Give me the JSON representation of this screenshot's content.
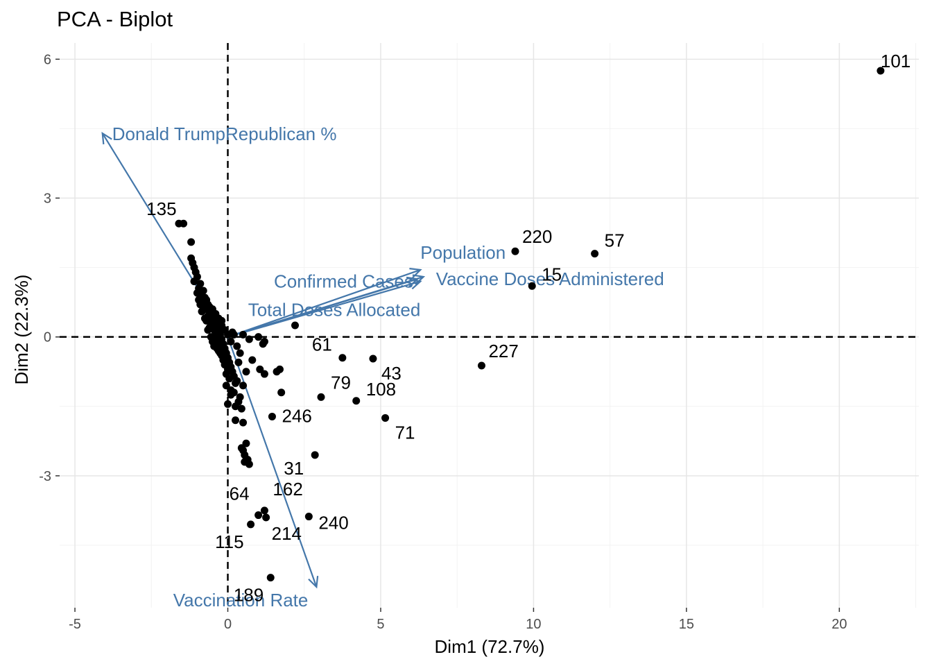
{
  "chart_data": {
    "type": "scatter",
    "title": "PCA - Biplot",
    "xlabel": "Dim1 (72.7%)",
    "ylabel": "Dim2 (22.3%)",
    "xlim": [
      -5.5,
      22.6
    ],
    "ylim": [
      -5.85,
      6.35
    ],
    "x_ticks": [
      -5,
      0,
      5,
      10,
      15,
      20
    ],
    "y_ticks": [
      -3,
      0,
      3,
      6
    ],
    "grid": true,
    "reference_lines": {
      "x": 0,
      "y": 0,
      "style": "dashed"
    },
    "colors": {
      "points": "#000000",
      "arrows": "#4477aa",
      "grid_major": "#e6e6e6",
      "grid_minor": "#f2f2f2",
      "tick_text": "#4d4d4d"
    },
    "variables": [
      {
        "name": "Donald TrumpRepublican %",
        "x": -4.1,
        "y": 4.4
      },
      {
        "name": "Population",
        "x": 6.3,
        "y": 1.45
      },
      {
        "name": "Confirmed Cases",
        "x": 6.2,
        "y": 1.25
      },
      {
        "name": "Vaccine Doses Administered",
        "x": 6.4,
        "y": 1.3
      },
      {
        "name": "Total Doses Allocated",
        "x": 6.3,
        "y": 1.2
      },
      {
        "name": "Vaccination Rate",
        "x": 2.9,
        "y": -5.4
      }
    ],
    "labeled_points": [
      {
        "label": "101",
        "x": 21.35,
        "y": 5.75
      },
      {
        "label": "220",
        "x": 9.4,
        "y": 1.85
      },
      {
        "label": "57",
        "x": 12.0,
        "y": 1.8
      },
      {
        "label": "15",
        "x": 9.95,
        "y": 1.1
      },
      {
        "label": "227",
        "x": 8.3,
        "y": -0.62
      },
      {
        "label": "135",
        "x": -1.45,
        "y": 2.45
      },
      {
        "label": "61",
        "x": 3.75,
        "y": -0.45
      },
      {
        "label": "43",
        "x": 4.75,
        "y": -0.47
      },
      {
        "label": "79",
        "x": 3.05,
        "y": -1.3
      },
      {
        "label": "108",
        "x": 4.2,
        "y": -1.38
      },
      {
        "label": "246",
        "x": 1.45,
        "y": -1.72
      },
      {
        "label": "71",
        "x": 5.15,
        "y": -1.75
      },
      {
        "label": "31",
        "x": 2.85,
        "y": -2.55
      },
      {
        "label": "162",
        "x": 1.2,
        "y": -3.75
      },
      {
        "label": "64",
        "x": 1.0,
        "y": -3.85
      },
      {
        "label": "240",
        "x": 2.65,
        "y": -3.88
      },
      {
        "label": "214",
        "x": 1.25,
        "y": -3.9
      },
      {
        "label": "115",
        "x": 0.75,
        "y": -4.05
      },
      {
        "label": "189",
        "x": 1.4,
        "y": -5.2
      }
    ],
    "unlabeled_points": [
      [
        2.2,
        0.25
      ],
      [
        0.5,
        0.05
      ],
      [
        1.0,
        0.0
      ],
      [
        1.2,
        -0.1
      ],
      [
        0.7,
        -0.05
      ],
      [
        1.15,
        -0.15
      ],
      [
        0.8,
        -0.5
      ],
      [
        0.4,
        -0.35
      ],
      [
        1.05,
        -0.7
      ],
      [
        1.6,
        -0.75
      ],
      [
        1.7,
        -0.7
      ],
      [
        1.2,
        -0.8
      ],
      [
        0.6,
        -0.75
      ],
      [
        1.75,
        -1.2
      ],
      [
        0.3,
        -0.95
      ],
      [
        0.5,
        -1.05
      ],
      [
        0.1,
        -1.15
      ],
      [
        0.4,
        -1.3
      ],
      [
        0.0,
        -1.45
      ],
      [
        0.25,
        -1.5
      ],
      [
        0.45,
        -1.55
      ],
      [
        0.25,
        -1.8
      ],
      [
        0.5,
        -1.85
      ],
      [
        0.6,
        -2.3
      ],
      [
        0.45,
        -2.4
      ],
      [
        0.5,
        -2.45
      ],
      [
        0.55,
        -2.55
      ],
      [
        0.65,
        -2.65
      ],
      [
        0.55,
        -2.7
      ],
      [
        0.7,
        -2.75
      ],
      [
        -1.6,
        2.45
      ],
      [
        -1.2,
        2.05
      ],
      [
        -1.2,
        1.7
      ],
      [
        -1.15,
        1.6
      ],
      [
        -1.1,
        1.5
      ],
      [
        -1.05,
        1.4
      ],
      [
        -1.0,
        1.3
      ],
      [
        -1.1,
        1.2
      ],
      [
        -0.9,
        1.15
      ],
      [
        -0.95,
        1.05
      ],
      [
        -0.8,
        1.0
      ],
      [
        -0.85,
        0.9
      ],
      [
        -0.75,
        0.85
      ],
      [
        -0.7,
        0.8
      ],
      [
        -0.8,
        0.75
      ],
      [
        -0.65,
        0.7
      ],
      [
        -0.6,
        0.65
      ],
      [
        -0.7,
        0.6
      ],
      [
        -0.55,
        0.55
      ],
      [
        -0.6,
        0.5
      ],
      [
        -0.5,
        0.45
      ],
      [
        -0.45,
        0.4
      ],
      [
        -0.55,
        0.35
      ],
      [
        -0.4,
        0.3
      ],
      [
        -0.45,
        0.25
      ],
      [
        -0.35,
        0.2
      ],
      [
        -0.3,
        0.15
      ],
      [
        -0.4,
        0.1
      ],
      [
        -0.25,
        0.05
      ],
      [
        -0.3,
        0.0
      ],
      [
        -0.2,
        -0.05
      ],
      [
        -0.35,
        -0.1
      ],
      [
        -0.15,
        -0.15
      ],
      [
        -0.25,
        -0.2
      ],
      [
        -0.1,
        -0.25
      ],
      [
        -0.3,
        -0.3
      ],
      [
        -0.05,
        -0.35
      ],
      [
        -0.2,
        -0.4
      ],
      [
        0.0,
        -0.45
      ],
      [
        -0.15,
        -0.5
      ],
      [
        0.05,
        -0.55
      ],
      [
        -0.1,
        -0.6
      ],
      [
        0.1,
        -0.65
      ],
      [
        0.0,
        -0.7
      ],
      [
        0.15,
        -0.75
      ],
      [
        -0.05,
        -0.8
      ],
      [
        0.2,
        -0.85
      ],
      [
        0.05,
        -0.9
      ],
      [
        0.25,
        -1.0
      ],
      [
        -0.55,
        0.0
      ],
      [
        -0.5,
        -0.1
      ],
      [
        -0.45,
        -0.2
      ],
      [
        -0.6,
        0.2
      ],
      [
        -0.75,
        0.4
      ],
      [
        -0.85,
        0.55
      ],
      [
        -0.9,
        0.7
      ],
      [
        -0.95,
        0.8
      ],
      [
        -1.0,
        0.95
      ],
      [
        -0.65,
        0.15
      ],
      [
        -0.4,
        -0.05
      ],
      [
        -0.35,
        -0.25
      ],
      [
        -0.25,
        -0.35
      ],
      [
        -0.15,
        -0.45
      ],
      [
        0.1,
        -0.1
      ],
      [
        0.2,
        0.05
      ],
      [
        0.3,
        -0.2
      ],
      [
        0.15,
        0.1
      ],
      [
        -0.2,
        0.25
      ],
      [
        -0.1,
        0.15
      ],
      [
        0.0,
        0.05
      ],
      [
        -0.5,
        0.6
      ],
      [
        -0.4,
        0.5
      ],
      [
        -0.3,
        0.4
      ],
      [
        -0.2,
        0.35
      ],
      [
        -0.65,
        0.45
      ],
      [
        -0.8,
        0.65
      ],
      [
        -0.7,
        0.35
      ],
      [
        -0.55,
        0.25
      ],
      [
        -0.45,
        0.15
      ],
      [
        0.35,
        -0.55
      ],
      [
        0.1,
        -1.25
      ],
      [
        -0.05,
        -1.05
      ],
      [
        0.2,
        -1.2
      ],
      [
        0.35,
        -1.4
      ]
    ]
  }
}
